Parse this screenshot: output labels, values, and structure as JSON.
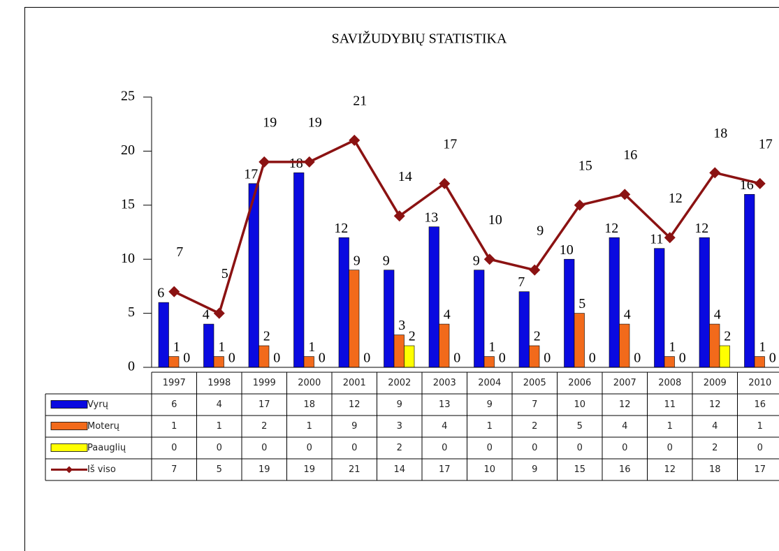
{
  "chart_data": {
    "type": "bar",
    "title": "SAVIŽUDYBIŲ STATISTIKA",
    "categories": [
      "1997",
      "1998",
      "1999",
      "2000",
      "2001",
      "2002",
      "2003",
      "2004",
      "2005",
      "2006",
      "2007",
      "2008",
      "2009",
      "2010"
    ],
    "series": [
      {
        "name": "Vyrų",
        "type": "bar",
        "color": "#0a0ae0",
        "values": [
          6,
          4,
          17,
          18,
          12,
          9,
          13,
          9,
          7,
          10,
          12,
          11,
          12,
          16
        ]
      },
      {
        "name": "Moterų",
        "type": "bar",
        "color": "#f26a1b",
        "values": [
          1,
          1,
          2,
          1,
          9,
          3,
          4,
          1,
          2,
          5,
          4,
          1,
          4,
          1
        ]
      },
      {
        "name": "Paauglių",
        "type": "bar",
        "color": "#ffff00",
        "values": [
          0,
          0,
          0,
          0,
          0,
          2,
          0,
          0,
          0,
          0,
          0,
          0,
          2,
          0
        ]
      },
      {
        "name": "Iš viso",
        "type": "line",
        "color": "#8b1212",
        "values": [
          7,
          5,
          19,
          19,
          21,
          14,
          17,
          10,
          9,
          15,
          16,
          12,
          18,
          17
        ]
      }
    ],
    "ylim": [
      0,
      25
    ],
    "yticks": [
      0,
      5,
      10,
      15,
      20,
      25
    ],
    "grid": false,
    "data_table": true
  }
}
